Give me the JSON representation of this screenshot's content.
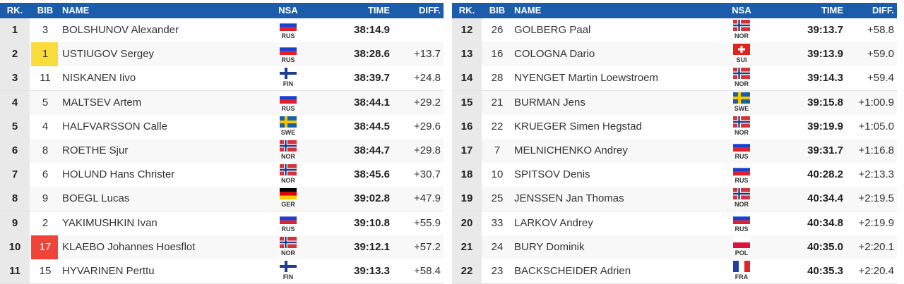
{
  "tables": [
    {
      "header": [
        "RK.",
        "BIB",
        "NAME",
        "NSA",
        "TIME",
        "DIFF."
      ],
      "rows": [
        {
          "rank": 1,
          "bib": 3,
          "name": "BOLSHUNOV Alexander",
          "nsa": "RUS",
          "time": "38:14.9"
        },
        {
          "rank": 2,
          "bib": 1,
          "bib_color": "#f7dc3c",
          "name": "USTIUGOV Sergey",
          "nsa": "RUS",
          "time": "38:28.6",
          "diff": "+13.7"
        },
        {
          "rank": 3,
          "bib": 11,
          "name": "NISKANEN Iivo",
          "nsa": "FIN",
          "time": "38:39.7",
          "diff": "+24.8"
        },
        {
          "rank": 4,
          "bib": 5,
          "name": "MALTSEV Artem",
          "nsa": "RUS",
          "time": "38:44.1",
          "diff": "+29.2"
        },
        {
          "rank": 5,
          "bib": 4,
          "name": "HALFVARSSON Calle",
          "nsa": "SWE",
          "time": "38:44.5",
          "diff": "+29.6"
        },
        {
          "rank": 6,
          "bib": 8,
          "name": "ROETHE Sjur",
          "nsa": "NOR",
          "time": "38:44.7",
          "diff": "+29.8"
        },
        {
          "rank": 7,
          "bib": 6,
          "name": "HOLUND Hans Christer",
          "nsa": "NOR",
          "time": "38:45.6",
          "diff": "+30.7"
        },
        {
          "rank": 8,
          "bib": 9,
          "name": "BOEGL Lucas",
          "nsa": "GER",
          "time": "39:02.8",
          "diff": "+47.9"
        },
        {
          "rank": 9,
          "bib": 2,
          "name": "YAKIMUSHKIN Ivan",
          "nsa": "RUS",
          "time": "39:10.8",
          "diff": "+55.9"
        },
        {
          "rank": 10,
          "bib": 17,
          "bib_color": "#ef4438",
          "name": "KLAEBO Johannes Hoesflot",
          "nsa": "NOR",
          "time": "39:12.1",
          "diff": "+57.2"
        },
        {
          "rank": 11,
          "bib": 15,
          "name": "HYVARINEN Perttu",
          "nsa": "FIN",
          "time": "39:13.3",
          "diff": "+58.4"
        }
      ]
    },
    {
      "header": [
        "RK.",
        "BIB",
        "NAME",
        "NSA",
        "TIME",
        "DIFF."
      ],
      "rows": [
        {
          "rank": 12,
          "bib": 26,
          "name": "GOLBERG Paal",
          "nsa": "NOR",
          "time": "39:13.7",
          "diff": "+58.8"
        },
        {
          "rank": 13,
          "bib": 16,
          "name": "COLOGNA Dario",
          "nsa": "SUI",
          "time": "39:13.9",
          "diff": "+59.0"
        },
        {
          "rank": 14,
          "bib": 28,
          "name": "NYENGET Martin Loewstroem",
          "nsa": "NOR",
          "time": "39:14.3",
          "diff": "+59.4"
        },
        {
          "rank": 15,
          "bib": 21,
          "name": "BURMAN Jens",
          "nsa": "SWE",
          "time": "39:15.8",
          "diff": "+1:00.9"
        },
        {
          "rank": 16,
          "bib": 22,
          "name": "KRUEGER Simen Hegstad",
          "nsa": "NOR",
          "time": "39:19.9",
          "diff": "+1:05.0"
        },
        {
          "rank": 17,
          "bib": 7,
          "name": "MELNICHENKO Andrey",
          "nsa": "RUS",
          "time": "39:31.7",
          "diff": "+1:16.8"
        },
        {
          "rank": 18,
          "bib": 10,
          "name": "SPITSOV Denis",
          "nsa": "RUS",
          "time": "40:28.2",
          "diff": "+2:13.3"
        },
        {
          "rank": 19,
          "bib": 25,
          "name": "JENSSEN Jan Thomas",
          "nsa": "NOR",
          "time": "40:34.4",
          "diff": "+2:19.5"
        },
        {
          "rank": 20,
          "bib": 33,
          "name": "LARKOV Andrey",
          "nsa": "RUS",
          "time": "40:34.8",
          "diff": "+2:19.9"
        },
        {
          "rank": 21,
          "bib": 24,
          "name": "BURY Dominik",
          "nsa": "POL",
          "time": "40:35.0",
          "diff": "+2:20.1"
        },
        {
          "rank": 22,
          "bib": 23,
          "name": "BACKSCHEIDER Adrien",
          "nsa": "FRA",
          "time": "40:35.3",
          "diff": "+2:20.4"
        }
      ]
    }
  ]
}
